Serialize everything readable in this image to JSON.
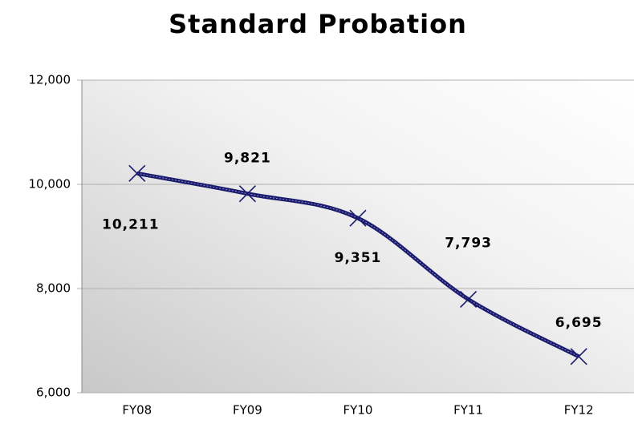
{
  "chart_data": {
    "type": "line",
    "title": "Standard Probation",
    "categories": [
      "FY08",
      "FY09",
      "FY10",
      "FY11",
      "FY12"
    ],
    "series": [
      {
        "name": "Standard Probation",
        "color": "#1a1a6e",
        "values": [
          10211,
          9821,
          9351,
          7793,
          6695
        ],
        "value_labels": [
          "10,211",
          "9,821",
          "9,351",
          "7,793",
          "6,695"
        ]
      }
    ],
    "ylim": [
      6000,
      12000
    ],
    "yticks": [
      {
        "value": 6000,
        "label": "6,000"
      },
      {
        "value": 8000,
        "label": "8,000"
      },
      {
        "value": 10000,
        "label": "10,000"
      },
      {
        "value": 12000,
        "label": "12,000"
      }
    ],
    "grid": true
  }
}
